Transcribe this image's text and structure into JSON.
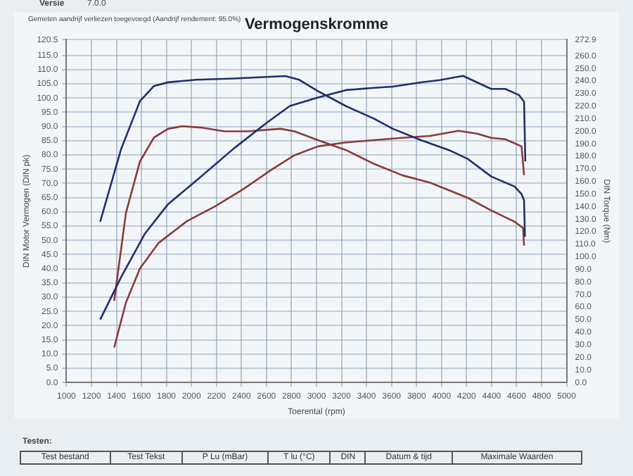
{
  "chart_data": {
    "type": "line",
    "title": "Vermogenskromme",
    "xlabel": "Toerental (rpm)",
    "ylabel": "DIN Motor Vermogen (DIN pk)",
    "y2label": "DIN Torque (Nm)",
    "annotations": [
      "Versie",
      "7.0.0",
      "Gemeten aandrijf verliezen toegevoegd (Aandrijf rendement: 95.0%)",
      "Testen:",
      "Test bestand",
      "Test Tekst",
      "P Lu (mBar)",
      "T lu (°C)",
      "DIN",
      "Datum & tijd",
      "Maximale Waarden"
    ],
    "xlim": [
      1000,
      5000
    ],
    "xticks": [
      1000,
      1200,
      1400,
      1600,
      1800,
      2000,
      2200,
      2400,
      2600,
      2800,
      3000,
      3200,
      3400,
      3600,
      3800,
      4000,
      4200,
      4400,
      4600,
      4800,
      5000
    ],
    "ylim": [
      0,
      120.5
    ],
    "yticks": [
      {
        "value": 0,
        "label": "0.0"
      },
      {
        "value": 5,
        "label": "5.0"
      },
      {
        "value": 10,
        "label": "10.0"
      },
      {
        "value": 15,
        "label": "15.0"
      },
      {
        "value": 20,
        "label": "20.0"
      },
      {
        "value": 25,
        "label": "25.0"
      },
      {
        "value": 30,
        "label": "30.0"
      },
      {
        "value": 35,
        "label": "35.0"
      },
      {
        "value": 40,
        "label": "40.0"
      },
      {
        "value": 45,
        "label": "45.0"
      },
      {
        "value": 50,
        "label": "50.0"
      },
      {
        "value": 55,
        "label": "55.0"
      },
      {
        "value": 60,
        "label": "60.0"
      },
      {
        "value": 65,
        "label": "65.0"
      },
      {
        "value": 70,
        "label": "70.0"
      },
      {
        "value": 75,
        "label": "75.0"
      },
      {
        "value": 80,
        "label": "80.0"
      },
      {
        "value": 85,
        "label": "85.0"
      },
      {
        "value": 90,
        "label": "90.0"
      },
      {
        "value": 95,
        "label": "95.0"
      },
      {
        "value": 100,
        "label": "100.0"
      },
      {
        "value": 105,
        "label": "105.0"
      },
      {
        "value": 110,
        "label": "110.0"
      },
      {
        "value": 115,
        "label": "115.0"
      },
      120.5
    ],
    "y2lim": [
      0,
      272.9
    ],
    "y2ticks": [
      {
        "value": 0,
        "label": "0.0"
      },
      {
        "value": 10,
        "label": "10.0"
      },
      {
        "value": 20,
        "label": "20.0"
      },
      {
        "value": 30,
        "label": "30.0"
      },
      {
        "value": 40,
        "label": "40.0"
      },
      {
        "value": 50,
        "label": "50.0"
      },
      {
        "value": 60,
        "label": "60.0"
      },
      {
        "value": 70,
        "label": "70.0"
      },
      {
        "value": 80,
        "label": "80.0"
      },
      {
        "value": 90,
        "label": "90.0"
      },
      {
        "value": 100,
        "label": "100.0"
      },
      {
        "value": 110,
        "label": "110.0"
      },
      {
        "value": 120,
        "label": "120.0"
      },
      {
        "value": 130,
        "label": "130.0"
      },
      {
        "value": 140,
        "label": "140.0"
      },
      {
        "value": 150,
        "label": "150.0"
      },
      {
        "value": 160,
        "label": "160.0"
      },
      {
        "value": 170,
        "label": "170.0"
      },
      {
        "value": 180,
        "label": "180.0"
      },
      {
        "value": 190,
        "label": "190.0"
      },
      {
        "value": 200,
        "label": "200.0"
      },
      {
        "value": 210,
        "label": "210.0"
      },
      {
        "value": 220,
        "label": "220.0"
      },
      {
        "value": 230,
        "label": "230.0"
      },
      {
        "value": 240,
        "label": "240.0"
      },
      {
        "value": 250,
        "label": "250.0"
      },
      {
        "value": 260,
        "label": "260.0"
      },
      272.9
    ],
    "grid": true,
    "marker": "none",
    "line_style": "solid",
    "series": [
      {
        "color": "#1f2f6e",
        "x": [
          1270,
          1438,
          1626,
          1813,
          2037,
          2337,
          2599,
          2787,
          3011,
          3236,
          3461,
          3610,
          3835,
          3985,
          4172,
          4284,
          4397,
          4509,
          4621,
          4660,
          4670
        ],
        "values": [
          22.1,
          37.1,
          52.2,
          62.7,
          70.9,
          82.2,
          91.2,
          97.2,
          100.2,
          102.8,
          103.6,
          104.0,
          105.5,
          106.3,
          107.8,
          105.5,
          103.2,
          103.2,
          101.0,
          98.7,
          77.7
        ]
      },
      {
        "color": "#1f2f6e",
        "axis": "y2",
        "x": [
          1270,
          1438,
          1588,
          1700,
          1813,
          2037,
          2337,
          2749,
          2862,
          3011,
          3236,
          3461,
          3610,
          3835,
          4060,
          4210,
          4397,
          4584,
          4640,
          4660,
          4667
        ],
        "values": [
          128,
          186,
          224,
          236,
          239,
          241,
          242,
          244,
          241,
          232,
          220,
          210,
          202,
          193,
          185,
          178,
          164,
          156,
          150,
          145,
          116
        ]
      },
      {
        "color": "#8b3a3a",
        "x": [
          1382,
          1476,
          1588,
          1738,
          1963,
          2188,
          2412,
          2637,
          2824,
          3011,
          3236,
          3461,
          3685,
          3910,
          4135,
          4284,
          4397,
          4509,
          4640,
          4660
        ],
        "values": [
          12.3,
          28.1,
          40.1,
          49.1,
          56.7,
          61.9,
          67.9,
          74.7,
          79.9,
          83.0,
          84.4,
          85.2,
          86.0,
          86.7,
          88.5,
          87.5,
          86.0,
          85.5,
          83.0,
          72.9
        ]
      },
      {
        "color": "#8b3a3a",
        "axis": "y2",
        "x": [
          1382,
          1476,
          1588,
          1700,
          1813,
          1925,
          2075,
          2262,
          2449,
          2711,
          2824,
          3011,
          3236,
          3461,
          3685,
          3910,
          4060,
          4210,
          4397,
          4584,
          4652,
          4660
        ],
        "values": [
          65,
          135,
          176,
          195,
          202,
          204,
          203,
          200,
          200,
          202,
          200,
          193,
          185,
          174,
          165,
          159,
          153,
          147,
          137,
          128,
          123,
          109
        ]
      }
    ]
  }
}
